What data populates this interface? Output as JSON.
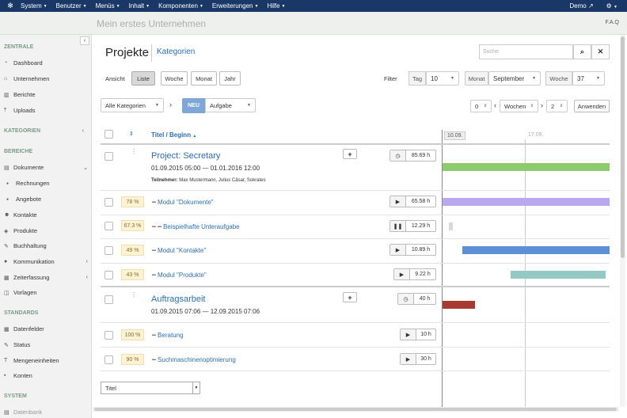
{
  "topbar": {
    "logo_icon": "joomla-icon",
    "menus": [
      "System",
      "Benutzer",
      "Menüs",
      "Inhalt",
      "Komponenten",
      "Erweiterungen",
      "Hilfe"
    ],
    "user": "Demo",
    "settings_icon": "gear-icon"
  },
  "subheader": {
    "site_title": "Mein erstes Unternehmen",
    "faq": "F.A.Q"
  },
  "sidebar": {
    "sections": {
      "zentrale": "ZENTRALE",
      "kategorien": "KATEGORIEN",
      "bereiche": "BEREICHE",
      "standards": "STANDARDS",
      "system": "SYSTEM"
    },
    "items": {
      "dashboard": "Dashboard",
      "unternehmen": "Unternehmen",
      "berichte": "Berichte",
      "uploads": "Uploads",
      "dokumente": "Dokumente",
      "rechnungen": "Rechnungen",
      "angebote": "Angebote",
      "kontakte": "Kontakte",
      "produkte": "Produkte",
      "buchhaltung": "Buchhaltung",
      "kommunikation": "Kommunikation",
      "zeiterfassung": "Zeiterfassung",
      "vorlagen": "Vorlagen",
      "datenfelder": "Datenfelder",
      "status": "Status",
      "mengeneinheiten": "Mengeneinheiten",
      "konten": "Konten",
      "datenbank": "Datenbank"
    }
  },
  "header": {
    "title": "Projekte",
    "categories_link": "Kategorien",
    "search_placeholder": "Suche"
  },
  "view": {
    "label": "Ansicht",
    "buttons": {
      "liste": "Liste",
      "woche": "Woche",
      "monat": "Monat",
      "jahr": "Jahr"
    },
    "active": "Liste"
  },
  "filter": {
    "label": "Filter",
    "tag_label": "Tag",
    "tag_value": "10",
    "monat_label": "Monat",
    "monat_value": "September",
    "woche_label": "Woche",
    "woche_value": "37"
  },
  "toolbar": {
    "category_select": "Alle Kategorien",
    "neu_label": "NEU",
    "neu_type": "Aufgabe",
    "offset_left": "0",
    "unit": "Wochen",
    "offset_right": "2",
    "apply": "Anwenden"
  },
  "table": {
    "col_title": "Titel / Beginn",
    "dates": {
      "d1": "10.09.",
      "d2": "17.09."
    },
    "projects": {
      "p1": {
        "title": "Project: Secretary",
        "start": "01.09.2015  05:00",
        "end": "01.01.2016  12:00",
        "members_label": "Teilnehmer:",
        "members": "Max Mustermann, Julius Cäsar, Sokrates",
        "time": "85.69 h"
      },
      "p2": {
        "title": "Auftragsarbeit",
        "start": "01.09.2015  07:06",
        "end": "12.09.2015  07:06",
        "time": "40 h"
      }
    },
    "tasks": {
      "t1": {
        "pct": "78 %",
        "title": "Modul \"Dokumente\"",
        "time": "65.58 h"
      },
      "t2": {
        "pct": "67.3 %",
        "title": "Beispielhafte Unteraufgabe",
        "time": "12.29 h"
      },
      "t3": {
        "pct": "49 %",
        "title": "Modul \"Kontakte\"",
        "time": "10.89 h"
      },
      "t4": {
        "pct": "43 %",
        "title": "Modul \"Produkte\"",
        "time": "9.22 h"
      },
      "t5": {
        "pct": "100 %",
        "title": "Beratung",
        "time": "10 h"
      },
      "t6": {
        "pct": "90 %",
        "title": "Suchmaschinenoptimierung",
        "time": "30 h"
      }
    },
    "bar_colors": {
      "p1": "#8ccc6e",
      "t1": "#b9a8f0",
      "t2": "#d8d8d8",
      "t3": "#5b8fd6",
      "t4": "#93c9c4",
      "p2": "#a83a32"
    }
  },
  "footer": {
    "sort_select": "Titel"
  }
}
